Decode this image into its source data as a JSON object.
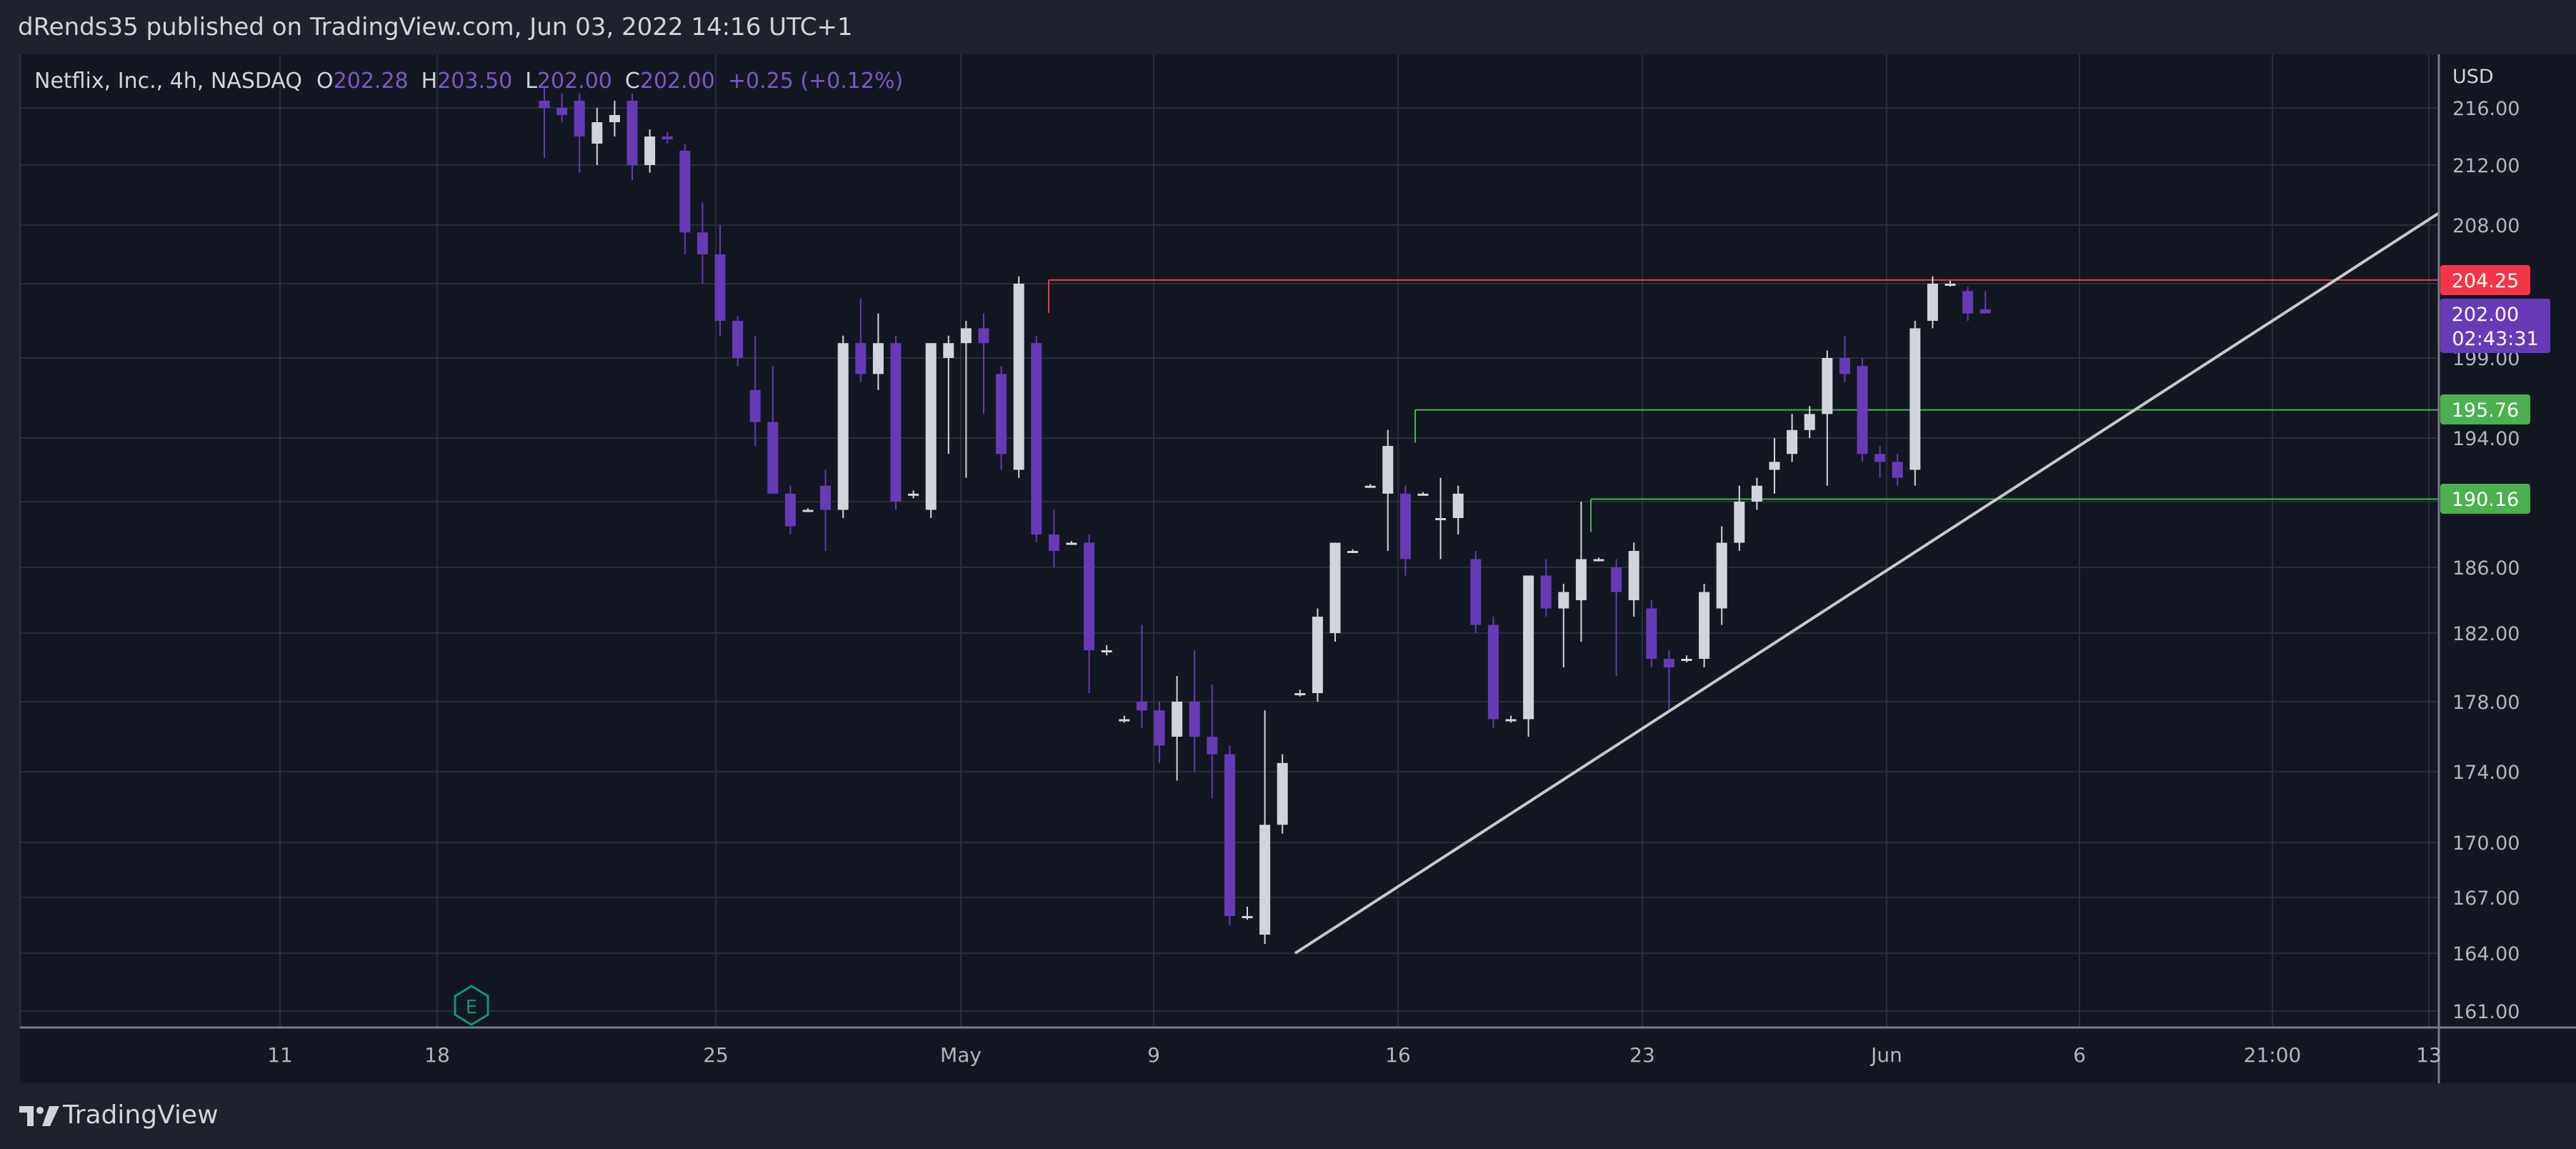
{
  "header": {
    "publisher_text": "dRends35 published on TradingView.com, Jun 03, 2022 14:16 UTC+1"
  },
  "legend": {
    "symbol": "Netflix, Inc., 4h, NASDAQ",
    "o_label": "O",
    "o_value": "202.28",
    "h_label": "H",
    "h_value": "203.50",
    "l_label": "L",
    "l_value": "202.00",
    "c_label": "C",
    "c_value": "202.00",
    "change": "+0.25 (+0.12%)"
  },
  "axis": {
    "currency": "USD",
    "y_ticks": [
      "216.00",
      "212.00",
      "208.00",
      "204.00",
      "199.00",
      "194.00",
      "190.00",
      "186.00",
      "182.00",
      "178.00",
      "174.00",
      "170.00",
      "167.00",
      "164.00",
      "161.00"
    ],
    "x_ticks": [
      "11",
      "18",
      "25",
      "May",
      "9",
      "16",
      "23",
      "Jun",
      "6",
      "21:00",
      "13"
    ]
  },
  "price_tags": {
    "resistance": "204.25",
    "current": "202.00",
    "countdown": "02:43:31",
    "support_1": "195.76",
    "support_2": "190.16"
  },
  "earnings_marker": "E",
  "footer": {
    "brand": "TradingView"
  },
  "colors": {
    "background": "#131722",
    "bull_candle": "#d1d4dc",
    "bear_candle": "#673ab7",
    "resistance_line": "#f23645",
    "support_line": "#4caf50",
    "trend_line": "#c8c8c8",
    "earnings_marker": "#089981"
  },
  "chart_data": {
    "type": "candlestick",
    "title": "Netflix, Inc., 4h, NASDAQ",
    "ylabel": "USD",
    "ylim": [
      160.0,
      217.5
    ],
    "candles": [
      {
        "o": 216.5,
        "h": 217.5,
        "l": 212.5,
        "c": 216.0
      },
      {
        "o": 216.0,
        "h": 217.0,
        "l": 215.0,
        "c": 215.5
      },
      {
        "o": 216.5,
        "h": 217.0,
        "l": 211.5,
        "c": 214.0
      },
      {
        "o": 213.5,
        "h": 216.0,
        "l": 212.0,
        "c": 215.0
      },
      {
        "o": 215.0,
        "h": 216.5,
        "l": 214.0,
        "c": 215.5
      },
      {
        "o": 216.5,
        "h": 217.0,
        "l": 211.0,
        "c": 212.0
      },
      {
        "o": 212.0,
        "h": 214.5,
        "l": 211.5,
        "c": 214.0
      },
      {
        "o": 214.0,
        "h": 214.3,
        "l": 213.5,
        "c": 213.8
      },
      {
        "o": 213.0,
        "h": 213.5,
        "l": 206.0,
        "c": 207.5
      },
      {
        "o": 207.5,
        "h": 209.5,
        "l": 204.0,
        "c": 206.0
      },
      {
        "o": 206.0,
        "h": 208.0,
        "l": 200.5,
        "c": 201.5
      },
      {
        "o": 201.5,
        "h": 201.8,
        "l": 198.5,
        "c": 199.0
      },
      {
        "o": 197.0,
        "h": 200.5,
        "l": 193.5,
        "c": 195.0
      },
      {
        "o": 195.0,
        "h": 198.5,
        "l": 190.5,
        "c": 190.5
      },
      {
        "o": 190.5,
        "h": 191.0,
        "l": 188.0,
        "c": 188.5
      },
      {
        "o": 189.5,
        "h": 189.6,
        "l": 189.4,
        "c": 189.5
      },
      {
        "o": 191.0,
        "h": 192.0,
        "l": 187.0,
        "c": 189.5
      },
      {
        "o": 189.5,
        "h": 200.5,
        "l": 189.0,
        "c": 200.0
      },
      {
        "o": 200.0,
        "h": 203.0,
        "l": 197.5,
        "c": 198.0
      },
      {
        "o": 198.0,
        "h": 202.0,
        "l": 197.0,
        "c": 200.0
      },
      {
        "o": 200.0,
        "h": 200.5,
        "l": 189.5,
        "c": 190.0
      },
      {
        "o": 190.5,
        "h": 190.7,
        "l": 190.2,
        "c": 190.5
      },
      {
        "o": 189.5,
        "h": 200.0,
        "l": 189.0,
        "c": 200.0
      },
      {
        "o": 199.0,
        "h": 200.5,
        "l": 193.0,
        "c": 200.0
      },
      {
        "o": 200.0,
        "h": 201.5,
        "l": 191.5,
        "c": 201.0
      },
      {
        "o": 201.0,
        "h": 202.0,
        "l": 195.5,
        "c": 200.0
      },
      {
        "o": 198.0,
        "h": 198.5,
        "l": 192.0,
        "c": 193.0
      },
      {
        "o": 192.0,
        "h": 204.5,
        "l": 191.5,
        "c": 204.0
      },
      {
        "o": 200.0,
        "h": 200.5,
        "l": 187.5,
        "c": 188.0
      },
      {
        "o": 188.0,
        "h": 189.5,
        "l": 186.0,
        "c": 187.0
      },
      {
        "o": 187.5,
        "h": 187.6,
        "l": 187.4,
        "c": 187.5
      },
      {
        "o": 187.5,
        "h": 188.0,
        "l": 178.5,
        "c": 181.0
      },
      {
        "o": 181.0,
        "h": 181.3,
        "l": 180.7,
        "c": 181.0
      },
      {
        "o": 177.0,
        "h": 177.2,
        "l": 176.8,
        "c": 177.0
      },
      {
        "o": 178.0,
        "h": 182.5,
        "l": 176.5,
        "c": 177.5
      },
      {
        "o": 177.5,
        "h": 178.0,
        "l": 174.5,
        "c": 175.5
      },
      {
        "o": 176.0,
        "h": 179.5,
        "l": 173.5,
        "c": 178.0
      },
      {
        "o": 178.0,
        "h": 181.0,
        "l": 174.0,
        "c": 176.0
      },
      {
        "o": 176.0,
        "h": 179.0,
        "l": 172.5,
        "c": 175.0
      },
      {
        "o": 175.0,
        "h": 175.5,
        "l": 165.5,
        "c": 166.0
      },
      {
        "o": 166.0,
        "h": 166.5,
        "l": 165.8,
        "c": 166.0
      },
      {
        "o": 165.0,
        "h": 177.5,
        "l": 164.5,
        "c": 171.0
      },
      {
        "o": 171.0,
        "h": 175.0,
        "l": 170.5,
        "c": 174.5
      },
      {
        "o": 178.5,
        "h": 178.7,
        "l": 178.3,
        "c": 178.5
      },
      {
        "o": 178.5,
        "h": 183.5,
        "l": 178.0,
        "c": 183.0
      },
      {
        "o": 182.0,
        "h": 187.5,
        "l": 181.5,
        "c": 187.5
      },
      {
        "o": 187.0,
        "h": 187.1,
        "l": 186.9,
        "c": 187.0
      },
      {
        "o": 191.0,
        "h": 191.1,
        "l": 190.9,
        "c": 191.0
      },
      {
        "o": 190.5,
        "h": 194.5,
        "l": 187.0,
        "c": 193.5
      },
      {
        "o": 190.5,
        "h": 191.0,
        "l": 185.5,
        "c": 186.5
      },
      {
        "o": 190.5,
        "h": 190.6,
        "l": 190.4,
        "c": 190.5
      },
      {
        "o": 189.0,
        "h": 191.5,
        "l": 186.5,
        "c": 189.0
      },
      {
        "o": 189.0,
        "h": 191.0,
        "l": 188.0,
        "c": 190.5
      },
      {
        "o": 186.5,
        "h": 187.0,
        "l": 182.0,
        "c": 182.5
      },
      {
        "o": 182.5,
        "h": 183.0,
        "l": 176.5,
        "c": 177.0
      },
      {
        "o": 177.0,
        "h": 177.2,
        "l": 176.8,
        "c": 177.0
      },
      {
        "o": 177.0,
        "h": 185.5,
        "l": 176.0,
        "c": 185.5
      },
      {
        "o": 185.5,
        "h": 186.5,
        "l": 183.0,
        "c": 183.5
      },
      {
        "o": 183.5,
        "h": 185.0,
        "l": 180.0,
        "c": 184.5
      },
      {
        "o": 184.0,
        "h": 190.0,
        "l": 181.5,
        "c": 186.5
      },
      {
        "o": 186.5,
        "h": 186.6,
        "l": 186.4,
        "c": 186.5
      },
      {
        "o": 186.0,
        "h": 186.5,
        "l": 179.5,
        "c": 184.5
      },
      {
        "o": 184.0,
        "h": 187.5,
        "l": 183.0,
        "c": 187.0
      },
      {
        "o": 183.5,
        "h": 184.0,
        "l": 180.0,
        "c": 180.5
      },
      {
        "o": 180.5,
        "h": 181.0,
        "l": 177.5,
        "c": 180.0
      },
      {
        "o": 180.5,
        "h": 180.7,
        "l": 180.3,
        "c": 180.5
      },
      {
        "o": 180.5,
        "h": 185.0,
        "l": 180.0,
        "c": 184.5
      },
      {
        "o": 183.5,
        "h": 188.5,
        "l": 182.5,
        "c": 187.5
      },
      {
        "o": 187.5,
        "h": 191.0,
        "l": 187.0,
        "c": 190.0
      },
      {
        "o": 190.0,
        "h": 191.5,
        "l": 189.5,
        "c": 191.0
      },
      {
        "o": 192.0,
        "h": 194.0,
        "l": 190.5,
        "c": 192.5
      },
      {
        "o": 193.0,
        "h": 195.5,
        "l": 192.5,
        "c": 194.5
      },
      {
        "o": 194.5,
        "h": 196.0,
        "l": 194.0,
        "c": 195.5
      },
      {
        "o": 195.5,
        "h": 199.5,
        "l": 191.0,
        "c": 199.0
      },
      {
        "o": 199.0,
        "h": 200.5,
        "l": 197.5,
        "c": 198.0
      },
      {
        "o": 198.5,
        "h": 199.0,
        "l": 192.5,
        "c": 193.0
      },
      {
        "o": 193.0,
        "h": 193.5,
        "l": 191.5,
        "c": 192.5
      },
      {
        "o": 192.5,
        "h": 193.0,
        "l": 191.0,
        "c": 191.5
      },
      {
        "o": 192.0,
        "h": 201.5,
        "l": 191.0,
        "c": 201.0
      },
      {
        "o": 201.5,
        "h": 204.5,
        "l": 201.0,
        "c": 204.0
      },
      {
        "o": 204.0,
        "h": 204.2,
        "l": 203.8,
        "c": 204.0
      },
      {
        "o": 203.5,
        "h": 203.8,
        "l": 201.5,
        "c": 202.0
      },
      {
        "o": 202.28,
        "h": 203.5,
        "l": 202.0,
        "c": 202.0
      }
    ],
    "levels": [
      204.25,
      195.76,
      190.16
    ],
    "trendline": [
      164.0,
      208.8
    ]
  }
}
